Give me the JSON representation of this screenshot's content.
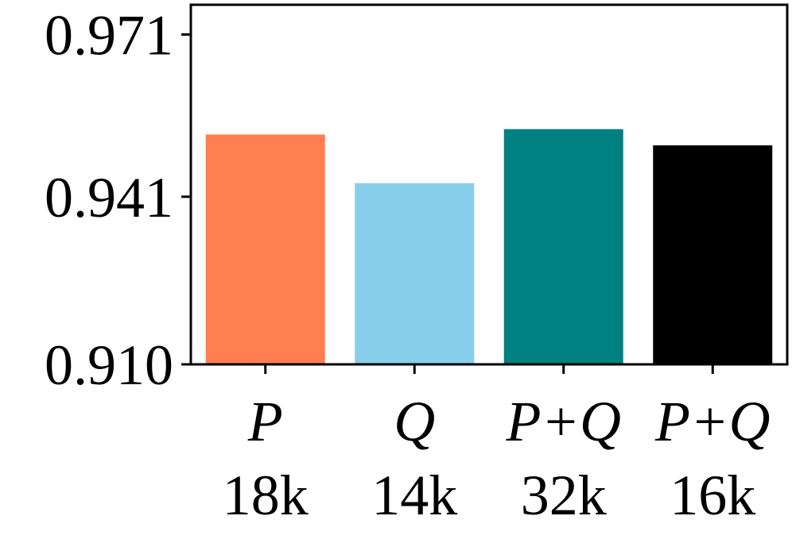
{
  "chart_data": {
    "type": "bar",
    "categories": [
      "P",
      "Q",
      "P+Q",
      "P+Q"
    ],
    "category_sublabels": [
      "18k",
      "14k",
      "32k",
      "16k"
    ],
    "values": [
      0.9525,
      0.9435,
      0.9535,
      0.9505
    ],
    "colors": [
      "#ff7f50",
      "#87ceeb",
      "#008080",
      "#000000"
    ],
    "yticks": [
      "0.910",
      "0.941",
      "0.971"
    ],
    "ylim": [
      0.91,
      0.9765
    ],
    "xlabel": "",
    "ylabel": "",
    "title": "",
    "grid": false
  }
}
